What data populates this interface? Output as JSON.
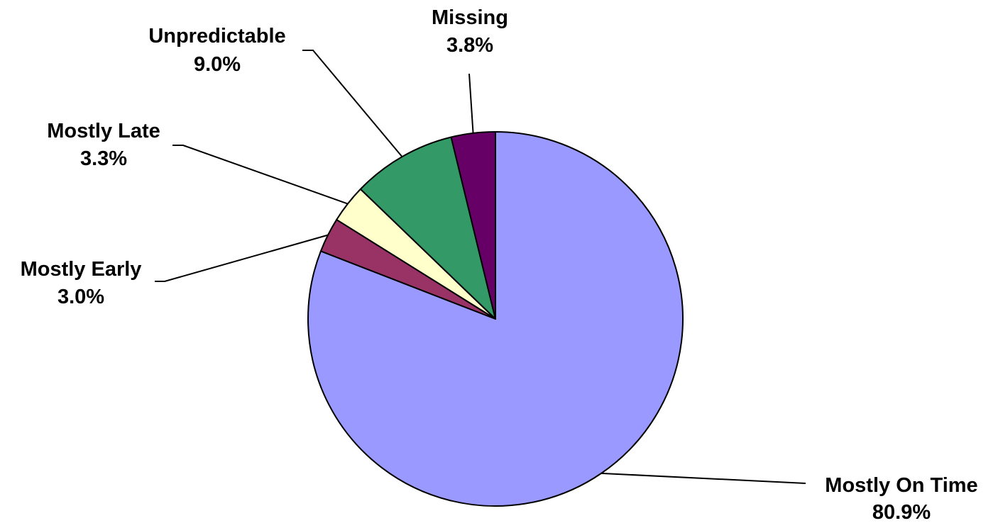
{
  "chart_data": {
    "type": "pie",
    "title": "",
    "start_angle_deg": 0,
    "direction": "clockwise",
    "slices": [
      {
        "label": "Mostly On Time",
        "value": 80.9,
        "display": "80.9%",
        "color": "#9999FF"
      },
      {
        "label": "Mostly Early",
        "value": 3.0,
        "display": "3.0%",
        "color": "#993366"
      },
      {
        "label": "Mostly Late",
        "value": 3.3,
        "display": "3.3%",
        "color": "#FFFFCC"
      },
      {
        "label": "Unpredictable",
        "value": 9.0,
        "display": "9.0%",
        "color": "#339966"
      },
      {
        "label": "Missing",
        "value": 3.8,
        "display": "3.8%",
        "color": "#660066"
      }
    ],
    "labels_outside": true,
    "leader_lines": true
  }
}
